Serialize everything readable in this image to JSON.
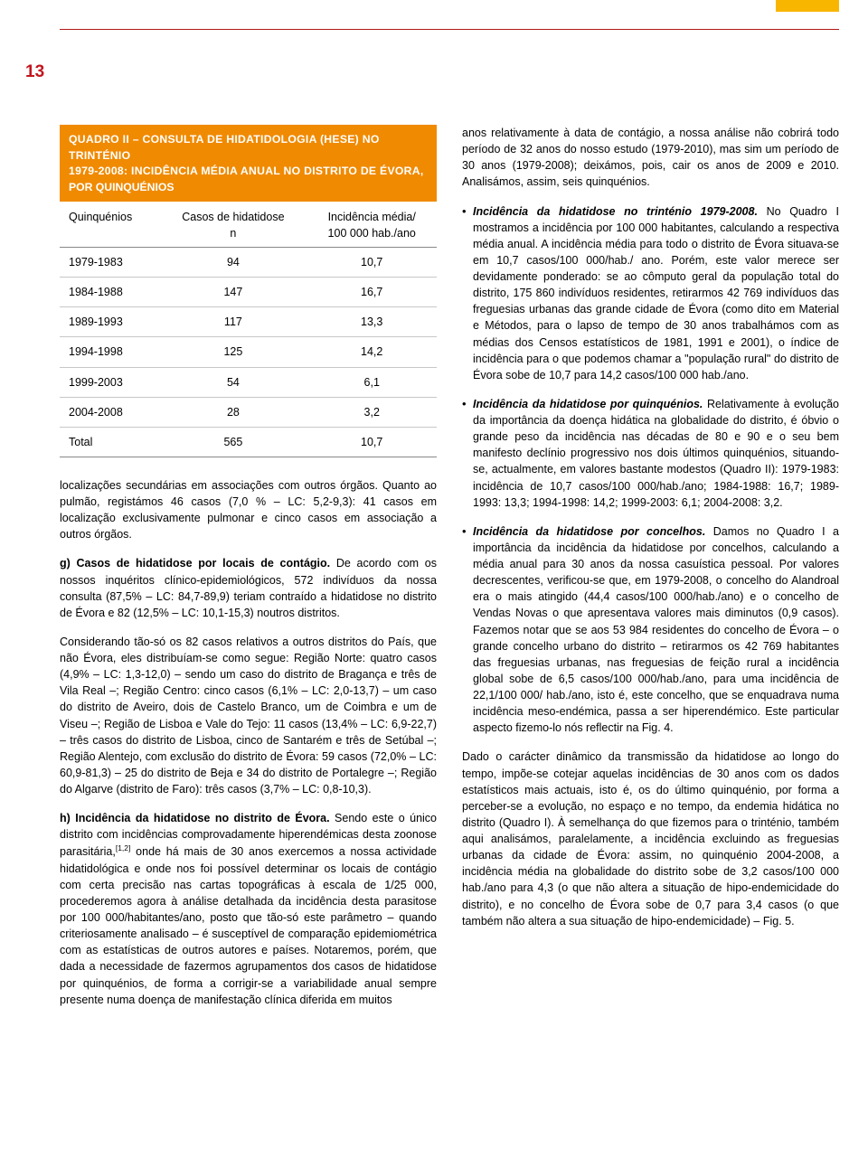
{
  "page_number": "13",
  "colors": {
    "accent_orange": "#f08a00",
    "accent_yellow": "#f9b600",
    "rule_red": "#b01919",
    "page_red": "#c2161e"
  },
  "table": {
    "title_line1": "QUADRO II – CONSULTA DE HIDATIDOLOGIA (HESE) NO TRINTÉNIO",
    "title_line2": "1979-2008: INCIDÊNCIA MÉDIA ANUAL NO DISTRITO DE ÉVORA,",
    "title_line3": "POR QUINQUÉNIOS",
    "columns": {
      "c1": "Quinquénios",
      "c2_l1": "Casos de hidatidose",
      "c2_l2": "n",
      "c3_l1": "Incidência média/",
      "c3_l2": "100 000 hab./ano"
    },
    "rows": [
      {
        "period": "1979-1983",
        "n": "94",
        "inc": "10,7"
      },
      {
        "period": "1984-1988",
        "n": "147",
        "inc": "16,7"
      },
      {
        "period": "1989-1993",
        "n": "117",
        "inc": "13,3"
      },
      {
        "period": "1994-1998",
        "n": "125",
        "inc": "14,2"
      },
      {
        "period": "1999-2003",
        "n": "54",
        "inc": "6,1"
      },
      {
        "period": "2004-2008",
        "n": "28",
        "inc": "3,2"
      }
    ],
    "total": {
      "label": "Total",
      "n": "565",
      "inc": "10,7"
    }
  },
  "left": {
    "p1": "localizações secundárias em associações com outros órgãos. Quanto ao pulmão, registámos 46 casos (7,0 % – LC: 5,2-9,3): 41 casos em localização exclusivamente pulmonar e cinco casos em associação a outros órgãos.",
    "p2_b": "g) Casos de hidatidose por locais de contágio.",
    "p2": " De acordo com os nossos inquéritos clínico-epidemiológicos, 572 indivíduos da nossa consulta (87,5% – LC: 84,7-89,9) teriam contraído a hidatidose no distrito de Évora e 82 (12,5% – LC: 10,1-15,3) noutros distritos.",
    "p3": "Considerando tão-só os 82 casos relativos a outros distritos do País, que não Évora, eles distribuíam-se como segue: Região Norte: quatro casos (4,9% – LC: 1,3-12,0) – sendo um caso do distrito de Bragança e três de Vila Real –; Região Centro: cinco casos (6,1% – LC: 2,0-13,7) – um caso do distrito de Aveiro, dois de Castelo Branco, um de Coimbra e um de Viseu –; Região de Lisboa e Vale do Tejo: 11 casos (13,4% – LC: 6,9-22,7) – três casos do distrito de Lisboa, cinco de Santarém e três de Setúbal –; Região Alentejo, com exclusão do distrito de Évora: 59 casos (72,0% – LC: 60,9-81,3) – 25 do distrito de Beja e 34 do distrito de Portalegre –; Região do Algarve (distrito de Faro): três casos (3,7% – LC: 0,8-10,3).",
    "p4_b": "h) Incidência da hidatidose no distrito de Évora.",
    "p4a": " Sendo este o único distrito com incidências comprovadamente hiperendémicas desta zoonose parasitária,",
    "p4_ref": "[1,2]",
    "p4b": " onde há mais de 30 anos exercemos a nossa actividade hidatidológica e onde nos foi possível determinar os locais de contágio com certa precisão nas cartas topográficas à escala de 1/25 000, procederemos agora à análise detalhada da incidência desta parasitose por 100 000/habitantes/ano, posto que tão-só este parâmetro – quando criteriosamente analisado – é susceptível de comparação epidemiométrica com as estatísticas de outros autores e países. Notaremos, porém, que dada a necessidade de fazermos agrupamentos dos casos de hidatidose por quinquénios, de forma a corrigir-se a variabilidade anual sempre presente numa doença de manifestação clínica diferida em muitos"
  },
  "right": {
    "p0": "anos relativamente à data de contágio, a nossa análise não cobrirá todo período de 32 anos do nosso estudo (1979-2010), mas sim um período de 30 anos (1979-2008); deixámos, pois, cair os anos de 2009 e 2010. Analisámos, assim, seis quinquénios.",
    "b1_it": "Incidência da hidatidose no trinténio 1979-2008.",
    "b1": " No Quadro I mostramos a incidência por 100 000 habitantes, calculando a respectiva média anual. A incidência média para todo o distrito de Évora situava-se em 10,7 casos/100 000/hab./ ano. Porém, este valor merece ser devidamente ponderado: se ao cômputo geral da população total do distrito, 175 860 indivíduos residentes, retirarmos 42 769 indivíduos das freguesias urbanas das grande cidade de Évora (como dito em Material e Métodos, para o lapso de tempo de 30 anos trabalhámos com as médias dos Censos estatísticos de 1981, 1991 e 2001), o índice de incidência para o que podemos chamar a \"população rural\" do distrito de Évora sobe de 10,7 para 14,2 casos/100 000 hab./ano.",
    "b2_it": "Incidência da hidatidose por quinquénios.",
    "b2": " Relativamente à evolução da importância da doença hidática na globalidade do distrito, é óbvio o grande peso da incidência nas décadas de 80 e 90 e o seu bem manifesto declínio progressivo nos dois últimos quinquénios, situando-se, actualmente, em valores bastante modestos (Quadro II): 1979-1983: incidência de 10,7 casos/100 000/hab./ano; 1984-1988: 16,7; 1989-1993: 13,3; 1994-1998: 14,2; 1999-2003: 6,1; 2004-2008: 3,2.",
    "b3_it": "Incidência da hidatidose por concelhos.",
    "b3": " Damos no Quadro I a importância da incidência da hidatidose por concelhos, calculando a média anual para 30 anos da nossa casuística pessoal. Por valores decrescentes, verificou-se que, em 1979-2008, o concelho do Alandroal era o mais atingido (44,4 casos/100 000/hab./ano) e o concelho de Vendas Novas o que apresentava valores mais diminutos (0,9 casos). Fazemos notar que se aos 53 984 residentes do concelho de Évora – o grande concelho urbano do distrito – retirarmos os 42 769 habitantes das freguesias urbanas, nas freguesias de feição rural a incidência global sobe de 6,5 casos/100 000/hab./ano, para uma incidência de 22,1/100 000/ hab./ano, isto é, este concelho, que se enquadrava numa incidência meso-endémica, passa a ser hiperendémico. Este particular aspecto fizemo-lo nós reflectir na Fig. 4.",
    "p_last": "Dado o carácter dinâmico da transmissão da hidatidose ao longo do tempo, impõe-se cotejar aquelas incidências de 30 anos com os dados estatísticos mais actuais, isto é, os do último quinquénio, por forma a perceber-se a evolução, no espaço e no tempo, da endemia hidática no distrito (Quadro I). À semelhança do que fizemos para o trinténio, também aqui analisámos, paralelamente, a incidência excluindo as freguesias urbanas da cidade de Évora: assim, no quinquénio 2004-2008, a incidência média na globalidade do distrito sobe de 3,2 casos/100 000 hab./ano para 4,3 (o que não altera a situação de hipo-endemicidade do distrito), e no concelho de Évora sobe de 0,7 para 3,4 casos (o que também não altera a sua situação de hipo-endemicidade) – Fig. 5."
  }
}
